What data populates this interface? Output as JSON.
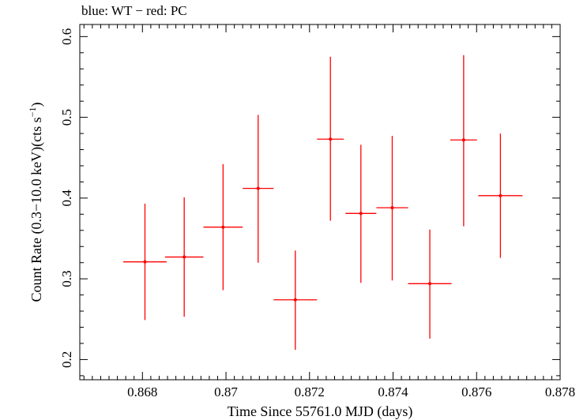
{
  "chart_data": {
    "type": "scatter",
    "title": "blue: WT − red: PC",
    "xlabel": "Time Since 55761.0 MJD (days)",
    "ylabel_main": "Count Rate (0.3−10.0 keV)(cts s",
    "ylabel_sup": "−1",
    "ylabel_end": ")",
    "xlim": [
      0.8665,
      0.878
    ],
    "ylim": [
      0.175,
      0.615
    ],
    "x_ticks": [
      {
        "value": 0.868,
        "label": "0.868"
      },
      {
        "value": 0.87,
        "label": "0.87"
      },
      {
        "value": 0.872,
        "label": "0.872"
      },
      {
        "value": 0.874,
        "label": "0.874"
      },
      {
        "value": 0.876,
        "label": "0.876"
      },
      {
        "value": 0.878,
        "label": "0.878"
      }
    ],
    "y_ticks": [
      {
        "value": 0.2,
        "label": "0.2"
      },
      {
        "value": 0.3,
        "label": "0.3"
      },
      {
        "value": 0.4,
        "label": "0.4"
      },
      {
        "value": 0.5,
        "label": "0.5"
      },
      {
        "value": 0.6,
        "label": "0.6"
      }
    ],
    "series": [
      {
        "color": "#ff0000",
        "points": [
          {
            "x": 0.86806,
            "xerr": 0.00052,
            "y": 0.321,
            "ylo": 0.249,
            "yhi": 0.393
          },
          {
            "x": 0.869,
            "xerr": 0.00046,
            "y": 0.327,
            "ylo": 0.253,
            "yhi": 0.401
          },
          {
            "x": 0.86993,
            "xerr": 0.00047,
            "y": 0.364,
            "ylo": 0.286,
            "yhi": 0.442
          },
          {
            "x": 0.87077,
            "xerr": 0.00037,
            "y": 0.412,
            "ylo": 0.32,
            "yhi": 0.503
          },
          {
            "x": 0.87166,
            "xerr": 0.00052,
            "y": 0.274,
            "ylo": 0.212,
            "yhi": 0.335
          },
          {
            "x": 0.8725,
            "xerr": 0.00032,
            "y": 0.473,
            "ylo": 0.372,
            "yhi": 0.575
          },
          {
            "x": 0.87323,
            "xerr": 0.00037,
            "y": 0.381,
            "ylo": 0.295,
            "yhi": 0.466
          },
          {
            "x": 0.87398,
            "xerr": 0.00038,
            "y": 0.388,
            "ylo": 0.298,
            "yhi": 0.477
          },
          {
            "x": 0.87488,
            "xerr": 0.00052,
            "y": 0.294,
            "ylo": 0.226,
            "yhi": 0.361
          },
          {
            "x": 0.87569,
            "xerr": 0.00032,
            "y": 0.472,
            "ylo": 0.365,
            "yhi": 0.577
          },
          {
            "x": 0.87657,
            "xerr": 0.00053,
            "y": 0.403,
            "ylo": 0.326,
            "yhi": 0.48
          }
        ]
      }
    ],
    "grid": false,
    "legend": "none"
  }
}
